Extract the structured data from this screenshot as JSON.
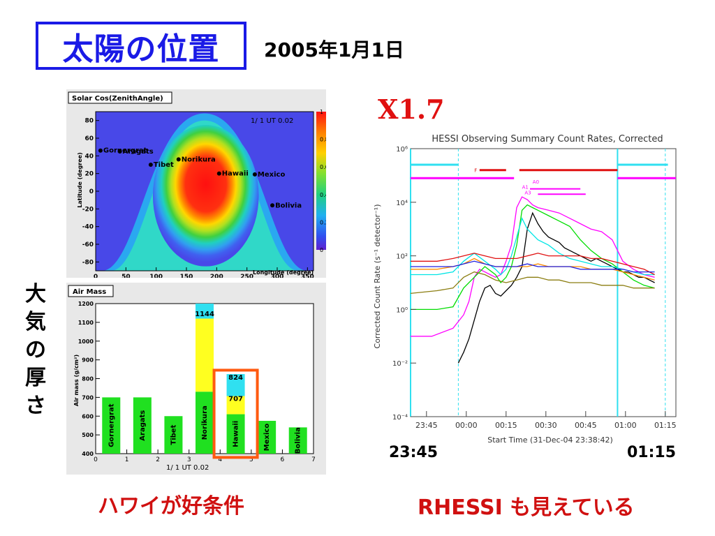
{
  "slide": {
    "title": "太陽の位置",
    "date": "2005年1月1日",
    "flare_class": "X1.7",
    "vertical_label": [
      "大",
      "気",
      "の",
      "厚",
      "さ"
    ],
    "caption_left": "ハワイが好条件",
    "caption_right": "RHESSI も見えている",
    "time_start": "23:45",
    "time_end": "01:15"
  },
  "chart_data": [
    {
      "type": "heatmap",
      "title": "Solar Cos(ZenithAngle)",
      "annotation": "1/ 1  UT  0.02",
      "xlabel": "Longitude (degree)",
      "ylabel": "Latitude (degree)",
      "xlim": [
        0,
        360
      ],
      "ylim": [
        -90,
        90
      ],
      "x_ticks": [
        "0",
        "50",
        "100",
        "150",
        "200",
        "250",
        "300",
        "350"
      ],
      "y_ticks": [
        "80",
        "60",
        "40",
        "20",
        "0",
        "-20",
        "-40",
        "-60",
        "-80"
      ],
      "colorbar_ticks": [
        "1",
        "0.8",
        "0.6",
        "0.4",
        "0.2",
        "0"
      ],
      "sites": [
        {
          "name": "Gornergrat",
          "lon": 8,
          "lat": 46
        },
        {
          "name": "Aragats",
          "lon": 40,
          "lat": 45
        },
        {
          "name": "Tibet",
          "lon": 91,
          "lat": 30
        },
        {
          "name": "Norikura",
          "lon": 137,
          "lat": 36
        },
        {
          "name": "Hawaii",
          "lon": 204,
          "lat": 20
        },
        {
          "name": "Mexico",
          "lon": 263,
          "lat": 19
        },
        {
          "name": "Bolivia",
          "lon": 292,
          "lat": -16
        }
      ]
    },
    {
      "type": "bar",
      "title": "Air Mass",
      "annotation": "1/ 1  UT  0.02",
      "ylabel": "Air mass (g/cm²)",
      "x_ticks": [
        "0",
        "1",
        "2",
        "3",
        "4",
        "5",
        "6",
        "7"
      ],
      "y_ticks": [
        "400",
        "500",
        "600",
        "700",
        "800",
        "900",
        "1000",
        "1100",
        "1200"
      ],
      "ylim": [
        400,
        1200
      ],
      "xlim": [
        0,
        7
      ],
      "bars": [
        {
          "name": "Gornergrat",
          "x": 0.5,
          "green": 700
        },
        {
          "name": "Aragats",
          "x": 1.5,
          "green": 700
        },
        {
          "name": "Tibet",
          "x": 2.5,
          "green": 600
        },
        {
          "name": "Norikura",
          "x": 3.5,
          "green": 730,
          "yellow": 1120,
          "cyan": 1200,
          "label": "1144"
        },
        {
          "name": "Hawaii",
          "x": 4.5,
          "green": 610,
          "yellow": 707,
          "cyan": 824,
          "label_cyan": "824",
          "label_yellow": "707"
        },
        {
          "name": "Mexico",
          "x": 5.5,
          "green": 575
        },
        {
          "name": "Bolivia",
          "x": 6.5,
          "green": 540
        }
      ]
    },
    {
      "type": "line",
      "title": "HESSI Observing Summary Count Rates, Corrected",
      "xlabel": "Start Time (31-Dec-04 23:38:42)",
      "ylabel": "Corrected Count Rate (s⁻¹ detector⁻¹)",
      "x_ticks": [
        "23:45",
        "00:00",
        "00:15",
        "00:30",
        "00:45",
        "01:00",
        "01:15"
      ],
      "y_ticks": [
        "10⁶",
        "10⁴",
        "10²",
        "10⁰",
        "10⁻²",
        "10⁻⁴"
      ],
      "ylim_log10": [
        -4,
        6
      ],
      "xlim_minutes": [
        0,
        100
      ],
      "flags": [
        "F",
        "A0",
        "A1",
        "A3"
      ],
      "series": [
        {
          "color": "#000000",
          "x": [
            18,
            20,
            22,
            24,
            26,
            28,
            30,
            32,
            34,
            36,
            38,
            40,
            42,
            44,
            46,
            48,
            50,
            52,
            54,
            56,
            58,
            60,
            62,
            64,
            66,
            68,
            70,
            72,
            74,
            76,
            78,
            80,
            82,
            84,
            86,
            88,
            90,
            92
          ],
          "y": [
            -2,
            -1.6,
            -1.1,
            -0.4,
            0.3,
            0.8,
            0.9,
            0.6,
            0.5,
            0.7,
            0.9,
            1.2,
            1.6,
            3.0,
            3.6,
            3.2,
            2.9,
            2.7,
            2.6,
            2.5,
            2.3,
            2.2,
            2.1,
            2.0,
            1.9,
            1.8,
            1.9,
            1.8,
            1.7,
            1.6,
            1.5,
            1.4,
            1.4,
            1.3,
            1.2,
            1.2,
            1.1,
            1.0
          ]
        },
        {
          "color": "#ff00ff",
          "x": [
            0,
            8,
            16,
            20,
            22,
            24,
            26,
            28,
            30,
            32,
            34,
            36,
            38,
            40,
            42,
            44,
            46,
            48,
            52,
            56,
            60,
            64,
            68,
            72,
            76,
            80,
            84,
            88,
            92
          ],
          "y": [
            -1,
            -1,
            -0.7,
            -0.2,
            0.3,
            1.2,
            1.5,
            1.4,
            1.3,
            1.2,
            1.3,
            1.8,
            2.4,
            3.8,
            4.2,
            4.1,
            3.9,
            3.8,
            3.7,
            3.6,
            3.4,
            3.2,
            3.0,
            2.9,
            2.6,
            1.8,
            1.5,
            1.3,
            1.2
          ]
        },
        {
          "color": "#00dd00",
          "x": [
            0,
            10,
            16,
            20,
            24,
            28,
            32,
            34,
            36,
            38,
            40,
            42,
            44,
            46,
            48,
            52,
            56,
            60,
            64,
            68,
            72,
            76,
            80,
            84,
            88,
            92
          ],
          "y": [
            0,
            0,
            0.1,
            0.8,
            1.2,
            1.6,
            1.3,
            1.0,
            1.2,
            1.6,
            2.4,
            3.7,
            3.9,
            3.8,
            3.7,
            3.5,
            3.3,
            3.1,
            2.6,
            2.2,
            1.9,
            1.7,
            1.4,
            1.1,
            0.9,
            0.8
          ]
        },
        {
          "color": "#00e5e5",
          "x": [
            0,
            10,
            16,
            20,
            24,
            28,
            32,
            34,
            36,
            38,
            40,
            42,
            44,
            46,
            48,
            52,
            56,
            60,
            64,
            68,
            72,
            76,
            80,
            84,
            88,
            92
          ],
          "y": [
            1.3,
            1.3,
            1.4,
            1.8,
            2.1,
            1.8,
            1.5,
            1.3,
            1.5,
            2.0,
            2.7,
            3.4,
            3.0,
            2.8,
            2.6,
            2.4,
            2.1,
            1.9,
            1.8,
            1.7,
            1.6,
            1.6,
            1.5,
            1.4,
            1.3,
            1.3
          ]
        },
        {
          "color": "#e01010",
          "x": [
            0,
            10,
            16,
            20,
            24,
            28,
            32,
            36,
            40,
            44,
            48,
            52,
            56,
            60,
            64,
            68,
            72,
            76,
            80,
            84,
            88,
            92
          ],
          "y": [
            1.8,
            1.8,
            1.9,
            2.0,
            2.1,
            2.0,
            1.9,
            1.9,
            1.9,
            2.0,
            2.1,
            2.0,
            2.0,
            2.0,
            2.0,
            1.9,
            1.9,
            1.8,
            1.7,
            1.6,
            1.5,
            1.3
          ]
        },
        {
          "color": "#ff8c00",
          "x": [
            0,
            10,
            16,
            20,
            24,
            28,
            32,
            36,
            40,
            44,
            48,
            52,
            56,
            60,
            64,
            68,
            72,
            76,
            80,
            84,
            88,
            92
          ],
          "y": [
            1.5,
            1.5,
            1.6,
            1.7,
            1.9,
            1.7,
            1.6,
            1.6,
            1.6,
            1.6,
            1.7,
            1.6,
            1.6,
            1.6,
            1.6,
            1.5,
            1.5,
            1.5,
            1.4,
            1.3,
            1.2,
            1.1
          ]
        },
        {
          "color": "#2020e0",
          "x": [
            0,
            10,
            16,
            20,
            24,
            28,
            32,
            36,
            40,
            44,
            48,
            52,
            56,
            60,
            64,
            68,
            72,
            76,
            80,
            84,
            88,
            92
          ],
          "y": [
            1.6,
            1.6,
            1.6,
            1.7,
            1.8,
            1.7,
            1.6,
            1.6,
            1.6,
            1.7,
            1.6,
            1.6,
            1.6,
            1.6,
            1.5,
            1.5,
            1.5,
            1.5,
            1.5,
            1.4,
            1.4,
            1.4
          ]
        },
        {
          "color": "#8b7d10",
          "x": [
            0,
            10,
            16,
            20,
            24,
            28,
            32,
            36,
            40,
            44,
            48,
            52,
            56,
            60,
            64,
            68,
            72,
            76,
            80,
            84,
            88,
            92
          ],
          "y": [
            0.6,
            0.7,
            0.8,
            1.2,
            1.4,
            1.3,
            1.1,
            1.0,
            1.1,
            1.2,
            1.2,
            1.1,
            1.1,
            1.0,
            1.0,
            1.0,
            0.9,
            0.9,
            0.9,
            0.8,
            0.8,
            0.8
          ]
        }
      ]
    }
  ]
}
